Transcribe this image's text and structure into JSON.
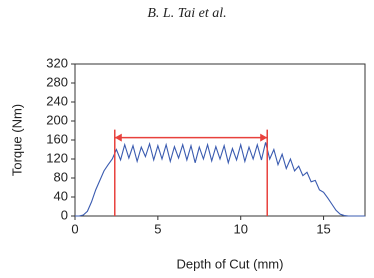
{
  "header": "B. L. Tai et al.",
  "chart_data": {
    "type": "line",
    "x_label": "Depth of Cut (mm)",
    "y_label": "Torque (Nm)",
    "x": [
      0,
      0.25,
      0.5,
      0.75,
      1,
      1.25,
      1.5,
      1.75,
      2,
      2.25,
      2.5,
      2.75,
      3,
      3.25,
      3.5,
      3.75,
      4,
      4.25,
      4.5,
      4.75,
      5,
      5.25,
      5.5,
      5.75,
      6,
      6.25,
      6.5,
      6.75,
      7,
      7.25,
      7.5,
      7.75,
      8,
      8.25,
      8.5,
      8.75,
      9,
      9.25,
      9.5,
      9.75,
      10,
      10.25,
      10.5,
      10.75,
      11,
      11.25,
      11.5,
      11.75,
      12,
      12.25,
      12.5,
      12.75,
      13,
      13.25,
      13.5,
      13.75,
      14,
      14.25,
      14.5,
      14.75,
      15,
      15.25,
      15.5,
      15.75,
      16,
      16.25,
      16.5,
      16.75,
      17,
      17.25,
      17.5
    ],
    "series": [
      {
        "color": "#3a5bb0",
        "values": [
          0,
          0,
          2,
          10,
          30,
          55,
          75,
          95,
          108,
          120,
          140,
          118,
          150,
          122,
          148,
          115,
          145,
          125,
          152,
          118,
          148,
          120,
          150,
          115,
          146,
          122,
          150,
          118,
          148,
          112,
          145,
          120,
          150,
          116,
          146,
          120,
          148,
          112,
          142,
          118,
          150,
          115,
          145,
          120,
          150,
          118,
          155,
          120,
          140,
          108,
          130,
          100,
          120,
          95,
          105,
          85,
          92,
          72,
          75,
          55,
          50,
          38,
          25,
          12,
          4,
          1,
          0,
          0,
          0,
          0,
          0
        ]
      }
    ],
    "markers": {
      "x": [
        2.4,
        11.6
      ],
      "y": 165,
      "color": "#e8413c"
    },
    "xlim": [
      0,
      17.5
    ],
    "ylim": [
      0,
      320
    ],
    "xticks": [
      0,
      5,
      10,
      15
    ],
    "yticks": [
      0,
      40,
      80,
      120,
      160,
      200,
      240,
      280,
      320
    ]
  }
}
